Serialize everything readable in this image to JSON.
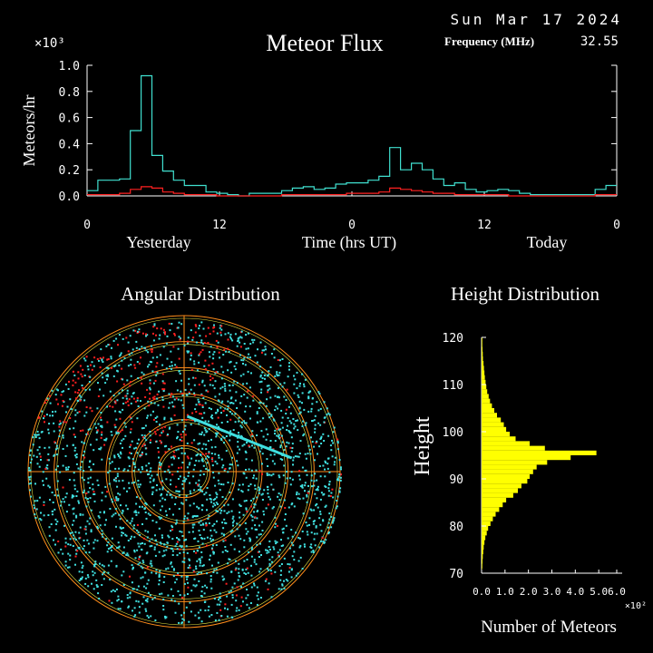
{
  "header": {
    "date": "Sun Mar 17 2024",
    "frequency_label": "Frequency (MHz)",
    "frequency_value": "32.55"
  },
  "colors": {
    "background": "#000000",
    "axis": "#ffffff",
    "flux_total": "#40e0d0",
    "flux_red": "#ff2020",
    "points_cyan": "#40e0e0",
    "points_red": "#ff2020",
    "rings_orange": "#ff8c1a",
    "rings_yellow": "#e0e040",
    "height_bars": "#ffff00"
  },
  "chart_data": [
    {
      "type": "line",
      "title": "Meteor Flux",
      "ylabel": "Meteors/hr",
      "xlabel": "Time (hrs UT)",
      "y_multiplier": "×10³",
      "x_group_labels": [
        "Yesterday",
        "Today"
      ],
      "x_tick_labels": [
        "0",
        "12",
        "0",
        "12",
        "0"
      ],
      "y_tick_labels": [
        "0.0",
        "0.2",
        "0.4",
        "0.6",
        "0.8",
        "1.0"
      ],
      "ylim": [
        0,
        1.0
      ],
      "step": true,
      "series": [
        {
          "color": "#40e0d0",
          "values": [
            0.04,
            0.12,
            0.12,
            0.13,
            0.5,
            0.92,
            0.31,
            0.19,
            0.12,
            0.08,
            0.08,
            0.03,
            0.02,
            0.01,
            0.0,
            0.02,
            0.02,
            0.02,
            0.04,
            0.06,
            0.07,
            0.05,
            0.06,
            0.09,
            0.1,
            0.1,
            0.12,
            0.15,
            0.37,
            0.2,
            0.25,
            0.2,
            0.13,
            0.08,
            0.1,
            0.05,
            0.03,
            0.04,
            0.05,
            0.04,
            0.02,
            0.01,
            0.01,
            0.01,
            0.01,
            0.01,
            0.01,
            0.05,
            0.08
          ]
        },
        {
          "color": "#ff2020",
          "values": [
            0.01,
            0.01,
            0.01,
            0.02,
            0.05,
            0.07,
            0.06,
            0.03,
            0.02,
            0.01,
            0.01,
            0.01,
            0.0,
            0.0,
            0.0,
            0.0,
            0.0,
            0.0,
            0.01,
            0.01,
            0.01,
            0.01,
            0.01,
            0.01,
            0.02,
            0.02,
            0.02,
            0.03,
            0.06,
            0.05,
            0.04,
            0.03,
            0.02,
            0.02,
            0.01,
            0.01,
            0.01,
            0.01,
            0.01,
            0.0,
            0.0,
            0.0,
            0.0,
            0.0,
            0.0,
            0.0,
            0.0,
            0.01,
            0.01
          ]
        }
      ]
    },
    {
      "type": "scatter",
      "title": "Angular Distribution",
      "rings": 6,
      "streak": {
        "from": [
          0.02,
          0.18
        ],
        "to": [
          0.69,
          0.1
        ]
      }
    },
    {
      "type": "bar",
      "orientation": "horizontal",
      "title": "Height Distribution",
      "ylabel": "Height",
      "xlabel": "Number of Meteors",
      "x_multiplier": "×10²",
      "x_tick_labels": [
        "0.0",
        "1.0",
        "2.0",
        "3.0",
        "4.0",
        "5.0",
        "6.0"
      ],
      "y_tick_labels": [
        "120",
        "110",
        "100",
        "90",
        "80",
        "70"
      ],
      "ylim": [
        70,
        120
      ],
      "xlim": [
        0,
        6.0
      ],
      "heights": [
        120,
        119,
        118,
        117,
        116,
        115,
        114,
        113,
        112,
        111,
        110,
        109,
        108,
        107,
        106,
        105,
        104,
        103,
        102,
        101,
        100,
        99,
        98,
        97,
        96,
        95,
        94,
        93,
        92,
        91,
        90,
        89,
        88,
        87,
        86,
        85,
        84,
        83,
        82,
        81,
        80,
        79,
        78,
        77,
        76,
        75,
        74,
        73,
        72,
        71
      ],
      "values": [
        0.03,
        0.03,
        0.04,
        0.05,
        0.06,
        0.08,
        0.1,
        0.12,
        0.14,
        0.17,
        0.2,
        0.24,
        0.3,
        0.36,
        0.44,
        0.54,
        0.66,
        0.82,
        0.95,
        1.05,
        1.2,
        1.45,
        2.05,
        2.7,
        4.9,
        3.8,
        2.8,
        2.35,
        2.2,
        2.05,
        1.95,
        1.7,
        1.55,
        1.35,
        1.05,
        0.9,
        0.75,
        0.6,
        0.48,
        0.38,
        0.28,
        0.22,
        0.16,
        0.12,
        0.09,
        0.07,
        0.05,
        0.04,
        0.03,
        0.02
      ]
    }
  ]
}
